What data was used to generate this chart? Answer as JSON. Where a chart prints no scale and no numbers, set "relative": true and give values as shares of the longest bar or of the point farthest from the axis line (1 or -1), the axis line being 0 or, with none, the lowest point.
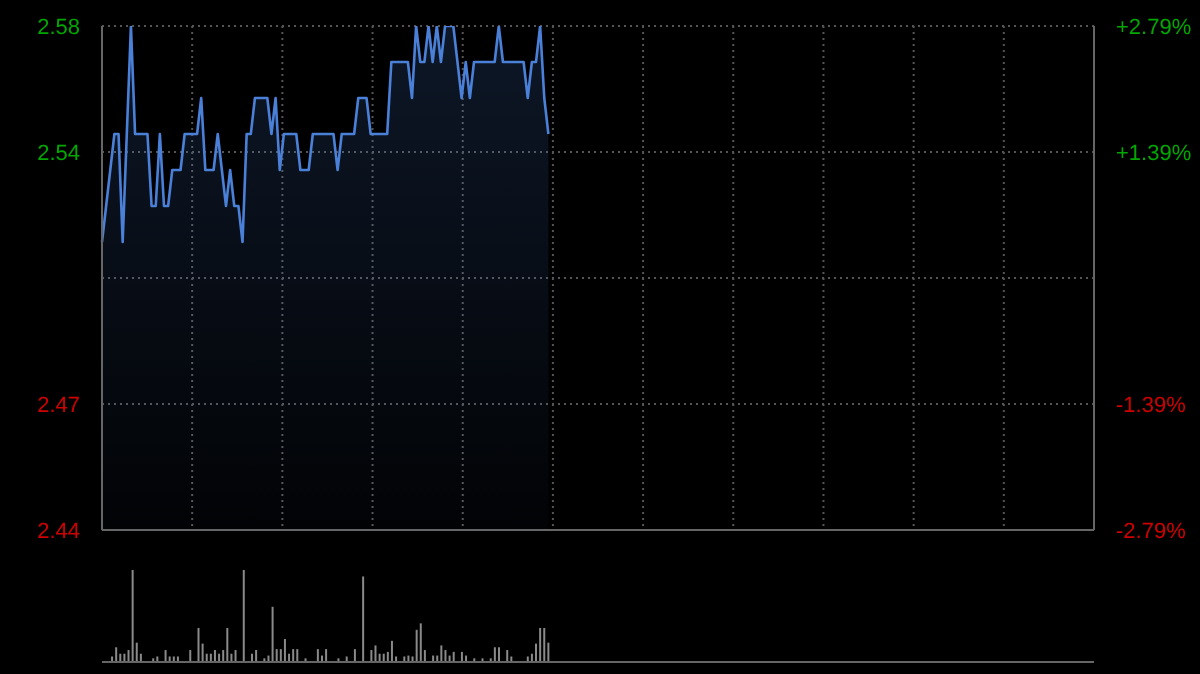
{
  "chart_data": [
    {
      "type": "area",
      "categories": [
        null,
        null,
        null,
        null,
        null,
        null,
        null,
        null,
        null,
        null,
        null,
        null,
        null,
        null,
        null,
        null,
        null,
        null,
        null,
        null,
        null,
        null,
        null,
        null,
        null,
        null,
        null,
        null,
        null,
        null,
        null,
        null,
        null,
        null,
        null,
        null,
        null,
        null,
        null,
        null,
        null,
        null,
        null,
        null,
        null,
        null,
        null,
        null,
        null,
        null,
        null,
        null,
        null,
        null,
        null,
        null,
        null,
        null,
        null,
        null,
        null,
        null,
        null,
        null,
        null,
        null,
        null,
        null,
        null,
        null,
        null,
        null,
        null,
        null,
        null,
        null,
        null,
        null,
        null,
        null,
        null,
        null,
        null,
        null,
        null,
        null,
        null,
        null,
        null,
        null,
        null,
        null,
        null,
        null,
        null,
        null,
        null,
        null,
        null,
        null,
        null,
        null,
        null,
        null,
        null,
        null,
        null,
        null,
        null,
        null,
        null,
        null,
        null,
        null,
        null,
        null,
        null,
        null,
        null,
        null,
        null,
        null,
        null,
        null,
        null,
        null,
        null,
        null,
        null,
        null,
        null,
        null,
        null,
        null,
        null,
        null,
        null,
        null,
        null,
        null,
        null,
        null,
        null,
        null,
        null,
        null,
        null,
        null,
        null,
        null,
        null,
        null,
        null,
        null,
        null,
        null,
        null,
        null,
        null,
        null,
        null,
        null,
        null,
        null,
        null,
        null,
        null,
        null,
        null,
        null,
        null,
        null,
        null,
        null,
        null,
        null,
        null,
        null,
        null,
        null,
        null,
        null,
        null,
        null,
        null,
        null,
        null,
        null,
        null,
        null,
        null,
        null,
        null,
        null,
        null,
        null,
        null,
        null,
        null,
        null,
        null,
        null,
        null,
        null,
        null,
        null,
        null,
        null,
        null,
        null,
        null,
        null,
        null,
        null,
        null,
        null,
        null,
        null,
        null,
        null,
        null,
        null,
        null,
        null,
        null,
        null,
        null,
        null,
        null,
        null,
        null,
        null,
        null,
        null,
        null,
        null,
        null,
        null,
        null,
        null,
        null
      ],
      "values": [
        2.52,
        2.53,
        2.54,
        2.55,
        2.55,
        2.52,
        2.55,
        2.58,
        2.55,
        2.55,
        2.55,
        2.55,
        2.53,
        2.53,
        2.55,
        2.53,
        2.53,
        2.54,
        2.54,
        2.54,
        2.55,
        2.55,
        2.55,
        2.55,
        2.56,
        2.54,
        2.54,
        2.54,
        2.55,
        2.54,
        2.53,
        2.54,
        2.53,
        2.53,
        2.52,
        2.55,
        2.55,
        2.56,
        2.56,
        2.56,
        2.56,
        2.55,
        2.56,
        2.54,
        2.55,
        2.55,
        2.55,
        2.55,
        2.54,
        2.54,
        2.54,
        2.55,
        2.55,
        2.55,
        2.55,
        2.55,
        2.55,
        2.54,
        2.55,
        2.55,
        2.55,
        2.55,
        2.56,
        2.56,
        2.56,
        2.55,
        2.55,
        2.55,
        2.55,
        2.55,
        2.57,
        2.57,
        2.57,
        2.57,
        2.57,
        2.56,
        2.58,
        2.57,
        2.57,
        2.58,
        2.57,
        2.58,
        2.57,
        2.58,
        2.58,
        2.58,
        2.57,
        2.56,
        2.57,
        2.56,
        2.57,
        2.57,
        2.57,
        2.57,
        2.57,
        2.57,
        2.58,
        2.57,
        2.57,
        2.57,
        2.57,
        2.57,
        2.57,
        2.56,
        2.57,
        2.57,
        2.58,
        2.56,
        2.55,
        null,
        null,
        null,
        null,
        null,
        null,
        null,
        null,
        null,
        null,
        null,
        null,
        null,
        null,
        null,
        null,
        null,
        null,
        null,
        null,
        null,
        null,
        null,
        null,
        null,
        null,
        null,
        null,
        null,
        null,
        null,
        null,
        null,
        null,
        null,
        null,
        null,
        null,
        null,
        null,
        null,
        null,
        null,
        null,
        null,
        null,
        null,
        null,
        null,
        null,
        null,
        null,
        null,
        null,
        null,
        null,
        null,
        null,
        null,
        null,
        null,
        null,
        null,
        null,
        null,
        null,
        null,
        null,
        null,
        null,
        null,
        null,
        null,
        null,
        null,
        null,
        null,
        null,
        null,
        null,
        null,
        null,
        null,
        null,
        null,
        null,
        null,
        null,
        null,
        null,
        null,
        null,
        null,
        null,
        null,
        null,
        null,
        null,
        null,
        null,
        null,
        null,
        null,
        null,
        null,
        null,
        null,
        null,
        null,
        null,
        null,
        null,
        null,
        null,
        null,
        null,
        null,
        null,
        null,
        null,
        null,
        null,
        null,
        null,
        null,
        null,
        null,
        null,
        null,
        null,
        null,
        null
      ],
      "color": "#4a80d8",
      "ylim": [
        2.44,
        2.58
      ],
      "yticks": [
        2.58,
        {
          "value": 2.545,
          "label": "2.54"
        },
        {
          "value": 2.51,
          "label": null
        },
        {
          "value": 2.475,
          "label": "2.47"
        },
        2.44
      ],
      "y2lim": [
        -2.79,
        2.79
      ],
      "y2ticks": [
        {
          "value": 2.79,
          "label": "+2.79%"
        },
        {
          "value": 1.39,
          "label": "+1.39%"
        },
        {
          "value": 0,
          "label": null
        },
        {
          "value": -1.39,
          "label": "-1.39%"
        },
        {
          "value": -2.79,
          "label": "-2.79%"
        }
      ],
      "grid": true,
      "tick_labels": "y"
    },
    {
      "type": "bar",
      "relative": true,
      "color": "#8a8a8a",
      "categories": [
        null,
        null,
        null,
        null,
        null,
        null,
        null,
        null,
        null,
        null,
        null,
        null,
        null,
        null,
        null,
        null,
        null,
        null,
        null,
        null,
        null,
        null,
        null,
        null,
        null,
        null,
        null,
        null,
        null,
        null,
        null,
        null,
        null,
        null,
        null,
        null,
        null,
        null,
        null,
        null,
        null,
        null,
        null,
        null,
        null,
        null,
        null,
        null,
        null,
        null,
        null,
        null,
        null,
        null,
        null,
        null,
        null,
        null,
        null,
        null,
        null,
        null,
        null,
        null,
        null,
        null,
        null,
        null,
        null,
        null,
        null,
        null,
        null,
        null,
        null,
        null,
        null,
        null,
        null,
        null,
        null,
        null,
        null,
        null,
        null,
        null,
        null,
        null,
        null,
        null,
        null,
        null,
        null,
        null,
        null,
        null,
        null,
        null,
        null,
        null,
        null,
        null,
        null,
        null,
        null,
        null,
        null,
        null,
        null,
        null,
        null,
        null,
        null,
        null,
        null,
        null,
        null,
        null,
        null,
        null,
        null,
        null,
        null,
        null,
        null,
        null,
        null,
        null,
        null,
        null,
        null,
        null,
        null,
        null,
        null,
        null,
        null,
        null,
        null,
        null,
        null,
        null,
        null,
        null,
        null,
        null,
        null,
        null,
        null,
        null,
        null,
        null,
        null,
        null,
        null,
        null,
        null,
        null,
        null,
        null,
        null,
        null,
        null,
        null,
        null,
        null,
        null,
        null,
        null,
        null,
        null,
        null,
        null,
        null,
        null,
        null,
        null,
        null,
        null,
        null,
        null,
        null,
        null,
        null,
        null,
        null,
        null,
        null,
        null,
        null,
        null,
        null,
        null,
        null,
        null,
        null,
        null,
        null,
        null,
        null,
        null,
        null,
        null,
        null,
        null,
        null,
        null,
        null,
        null,
        null,
        null,
        null,
        null,
        null,
        null,
        null,
        null,
        null,
        null,
        null,
        null,
        null,
        null,
        null,
        null,
        null,
        null,
        null,
        null,
        null,
        null,
        null,
        null,
        null,
        null,
        null,
        null,
        null,
        null,
        null,
        null
      ],
      "values": [
        null,
        null,
        0.06,
        0.16,
        0.09,
        0.09,
        0.13,
        1,
        0.21,
        0.09,
        null,
        null,
        0.04,
        0.06,
        null,
        0.13,
        0.06,
        0.06,
        0.06,
        null,
        null,
        0.13,
        null,
        0.37,
        0.2,
        0.09,
        0.09,
        0.13,
        0.09,
        0.13,
        0.37,
        0.09,
        0.13,
        null,
        1,
        null,
        0.09,
        0.13,
        null,
        0.04,
        0.07,
        0.6,
        0.14,
        0.14,
        0.25,
        0.09,
        0.14,
        0.14,
        null,
        0.04,
        null,
        null,
        0.14,
        0.07,
        0.14,
        null,
        null,
        0.04,
        null,
        0.06,
        null,
        0.14,
        null,
        0.93,
        null,
        0.13,
        0.18,
        0.09,
        0.09,
        0.11,
        0.23,
        0.06,
        null,
        0.06,
        0.07,
        0.06,
        0.35,
        0.42,
        0.13,
        null,
        0.07,
        0.07,
        0.18,
        0.13,
        0.07,
        0.11,
        null,
        0.11,
        0.07,
        null,
        0.04,
        null,
        0.04,
        null,
        0.04,
        0.16,
        0.16,
        null,
        0.13,
        0.06,
        null,
        null,
        null,
        0.06,
        0.09,
        0.2,
        0.37,
        0.37,
        0.21,
        null,
        null,
        null,
        null,
        null,
        null,
        null,
        null,
        null,
        null,
        null,
        null,
        null,
        null,
        null,
        null,
        null,
        null,
        null,
        null,
        null,
        null,
        null,
        null,
        null,
        null,
        null,
        null,
        null,
        null,
        null,
        null,
        null,
        null,
        null,
        null,
        null,
        null,
        null,
        null,
        null,
        null,
        null,
        null,
        null,
        null,
        null,
        null,
        null,
        null,
        null,
        null,
        null,
        null,
        null,
        null,
        null,
        null,
        null,
        null,
        null,
        null,
        null,
        null,
        null,
        null,
        null,
        null,
        null,
        null,
        null,
        null,
        null,
        null,
        null,
        null,
        null,
        null,
        null,
        null,
        null,
        null,
        null,
        null,
        null,
        null,
        null,
        null,
        null,
        null,
        null,
        null,
        null,
        null,
        null,
        null,
        null,
        null,
        null,
        null,
        null,
        null,
        null,
        null,
        null,
        null,
        null,
        null,
        null,
        null,
        null,
        null,
        null,
        null,
        null,
        null,
        null,
        null,
        null,
        null,
        null,
        null,
        null,
        null,
        null,
        null,
        null,
        null,
        null,
        null,
        null,
        null
      ],
      "tick_labels": false
    }
  ]
}
